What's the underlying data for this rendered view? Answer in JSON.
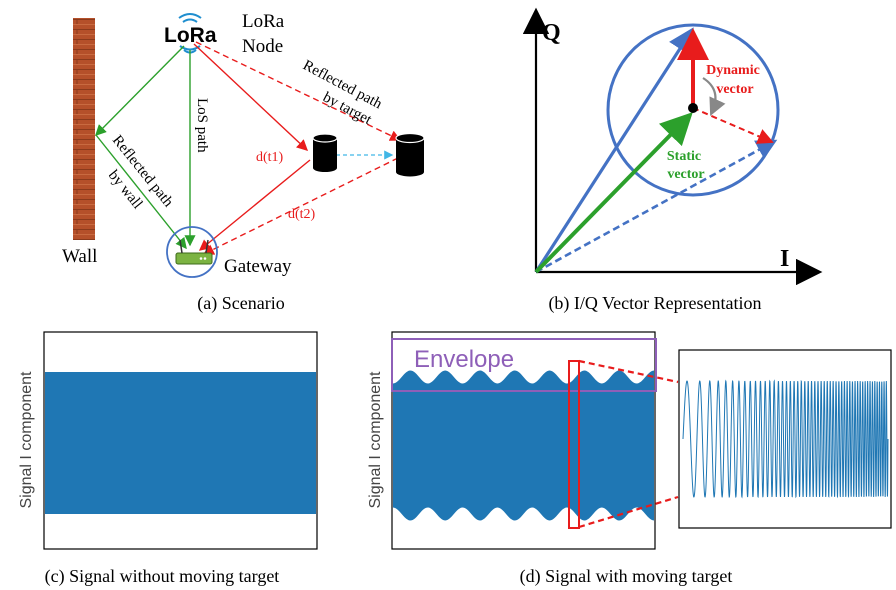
{
  "panel_a": {
    "logo_text": "LoRa",
    "node_label_line1": "LoRa",
    "node_label_line2": "Node",
    "wall_label": "Wall",
    "gateway_label": "Gateway",
    "los_label": "LoS path",
    "wall_path_line1": "Reflected path",
    "wall_path_line2": "by wall",
    "target_path_line1": "Reflected path",
    "target_path_line2": "by target",
    "d_t1": "d(t1)",
    "d_t2": "d(t2)",
    "caption": "(a) Scenario"
  },
  "panel_b": {
    "q_label": "Q",
    "i_label": "I",
    "dynamic_line1": "Dynamic",
    "dynamic_line2": "vector",
    "static_line1": "Static",
    "static_line2": "vector",
    "caption": "(b) I/Q Vector Representation"
  },
  "panel_c": {
    "ylabel": "Signal I component",
    "caption": "(c) Signal without moving target"
  },
  "panel_d": {
    "ylabel": "Signal I component",
    "envelope_label": "Envelope",
    "caption": "(d) Signal with moving target"
  },
  "colors": {
    "blue": "#1f77b4",
    "diagram_blue": "#4472c4",
    "green": "#2ca02c",
    "red": "#e81c1c",
    "purple": "#8e5fb8",
    "brick": "#b5502a"
  }
}
